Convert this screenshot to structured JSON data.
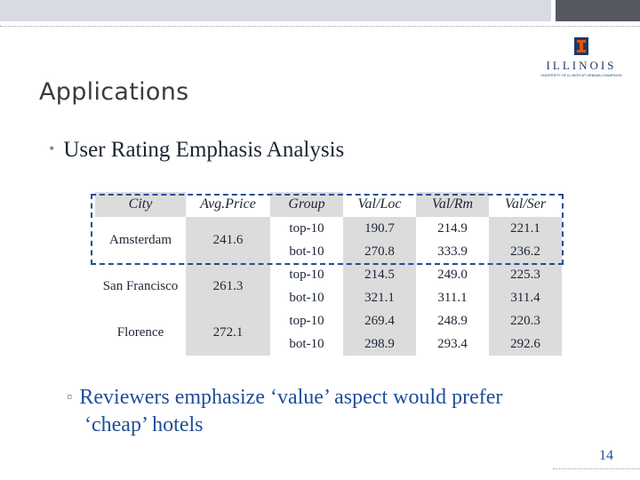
{
  "logo": {
    "word": "ILLINOIS",
    "sub": "UNIVERSITY OF ILLINOIS AT URBANA-CHAMPAIGN"
  },
  "slide": {
    "title": "Applications",
    "bullet": "User Rating Emphasis Analysis",
    "sub_bullet_line1": "Reviewers emphasize ‘value’ aspect would prefer",
    "sub_bullet_line2": "‘cheap’ hotels",
    "page_number": "14"
  },
  "table": {
    "headers": [
      "City",
      "Avg.Price",
      "Group",
      "Val/Loc",
      "Val/Rm",
      "Val/Ser"
    ],
    "cities": [
      {
        "city": "Amsterdam",
        "price": "241.6",
        "rows": [
          {
            "group": "top-10",
            "loc": "190.7",
            "rm": "214.9",
            "ser": "221.1"
          },
          {
            "group": "bot-10",
            "loc": "270.8",
            "rm": "333.9",
            "ser": "236.2"
          }
        ]
      },
      {
        "city": "San Francisco",
        "price": "261.3",
        "rows": [
          {
            "group": "top-10",
            "loc": "214.5",
            "rm": "249.0",
            "ser": "225.3"
          },
          {
            "group": "bot-10",
            "loc": "321.1",
            "rm": "311.1",
            "ser": "311.4"
          }
        ]
      },
      {
        "city": "Florence",
        "price": "272.1",
        "rows": [
          {
            "group": "top-10",
            "loc": "269.4",
            "rm": "248.9",
            "ser": "220.3"
          },
          {
            "group": "bot-10",
            "loc": "298.9",
            "rm": "293.4",
            "ser": "292.6"
          }
        ]
      }
    ]
  },
  "colors": {
    "accent": "#1f4e9a",
    "table_gray": "#dcdcdc",
    "logo_blue": "#1e3867",
    "logo_orange": "#e35205"
  }
}
